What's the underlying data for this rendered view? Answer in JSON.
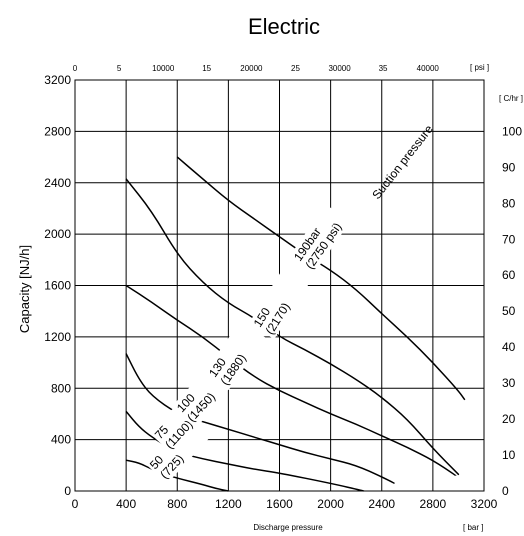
{
  "chart_data": {
    "type": "line",
    "title": "Electric",
    "xlabel": "Discharge pressure",
    "xunit": "[ bar ]",
    "ylabel": "Capacity [NJ/h]",
    "xlim": [
      0,
      3200
    ],
    "ylim": [
      0,
      3200
    ],
    "x_ticks": [
      "0",
      "400",
      "800",
      "1200",
      "1600",
      "2000",
      "2400",
      "2800",
      "3200"
    ],
    "y_ticks": [
      "0",
      "400",
      "800",
      "1200",
      "1600",
      "2000",
      "2400",
      "2800",
      "3200"
    ],
    "top_axis": {
      "unit": "[ psi ]",
      "ticks": [
        {
          "label": "0",
          "x": 0
        },
        {
          "label": "5",
          "x": 345
        },
        {
          "label": "10000",
          "x": 690
        },
        {
          "label": "15",
          "x": 1030
        },
        {
          "label": "20000",
          "x": 1380
        },
        {
          "label": "25",
          "x": 1725
        },
        {
          "label": "30000",
          "x": 2070
        },
        {
          "label": "35",
          "x": 2410
        },
        {
          "label": "40000",
          "x": 2760
        }
      ]
    },
    "right_axis": {
      "unit": "[ C/hr ]",
      "ticks": [
        {
          "label": "0",
          "y": 0
        },
        {
          "label": "10",
          "y": 280
        },
        {
          "label": "20",
          "y": 560
        },
        {
          "label": "30",
          "y": 840
        },
        {
          "label": "40",
          "y": 1120
        },
        {
          "label": "50",
          "y": 1400
        },
        {
          "label": "60",
          "y": 1680
        },
        {
          "label": "70",
          "y": 1960
        },
        {
          "label": "80",
          "y": 2240
        },
        {
          "label": "90",
          "y": 2520
        },
        {
          "label": "100",
          "y": 2800
        }
      ]
    },
    "annotation": "Suction pressure",
    "series": [
      {
        "label1": "50",
        "label2": "(725)",
        "x": [
          400,
          500,
          600,
          700,
          800,
          1000,
          1100,
          1200
        ],
        "y": [
          240,
          220,
          170,
          130,
          100,
          50,
          20,
          0
        ]
      },
      {
        "label1": "75",
        "label2": "(1100)",
        "x": [
          400,
          500,
          600,
          800,
          1000,
          1200,
          1400,
          1600,
          2000,
          2260
        ],
        "y": [
          620,
          500,
          420,
          300,
          250,
          210,
          170,
          140,
          60,
          0
        ]
      },
      {
        "label1": "100",
        "label2": "(1450)",
        "x": [
          400,
          500,
          600,
          800,
          1000,
          1200,
          1400,
          1600,
          1800,
          2000,
          2200,
          2400,
          2500
        ],
        "y": [
          1070,
          870,
          740,
          600,
          540,
          480,
          420,
          360,
          300,
          250,
          200,
          110,
          60
        ]
      },
      {
        "label1": "130",
        "label2": "(1880)",
        "x": [
          400,
          600,
          800,
          1000,
          1200,
          1400,
          1600,
          1800,
          2000,
          2200,
          2400,
          2600,
          2800,
          2980
        ],
        "y": [
          1600,
          1470,
          1330,
          1200,
          1040,
          890,
          780,
          690,
          600,
          520,
          430,
          340,
          240,
          120
        ]
      },
      {
        "label1": "150",
        "label2": "(2170)",
        "x": [
          400,
          600,
          800,
          1000,
          1200,
          1400,
          1600,
          1800,
          2000,
          2200,
          2400,
          2600,
          2800,
          3000
        ],
        "y": [
          2430,
          2180,
          1840,
          1620,
          1460,
          1350,
          1200,
          1100,
          990,
          870,
          730,
          560,
          330,
          130
        ]
      },
      {
        "label1": "190bar",
        "label2": "(2750 psi)",
        "x": [
          800,
          1000,
          1200,
          1400,
          1600,
          1800,
          2000,
          2200,
          2400,
          2600,
          2800,
          3000,
          3050
        ],
        "y": [
          2600,
          2430,
          2260,
          2120,
          1980,
          1840,
          1720,
          1570,
          1380,
          1200,
          1000,
          780,
          710
        ]
      }
    ]
  }
}
